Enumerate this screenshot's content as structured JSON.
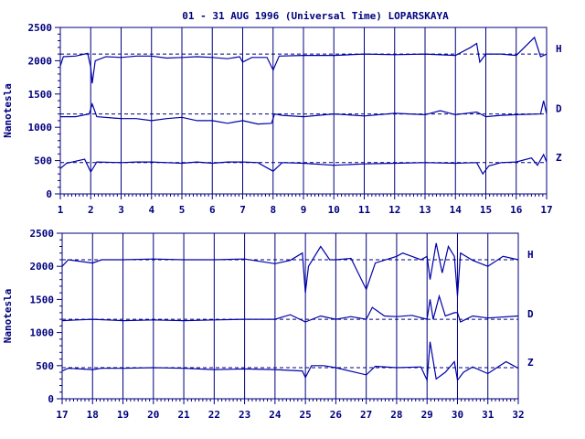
{
  "colors": {
    "ink": "#00007f",
    "trace": "#0000aa",
    "background": "#ffffff"
  },
  "title": "01 - 31 AUG 1996 (Universal Time) LOPARSKAYA",
  "chart_data": [
    {
      "type": "line",
      "ylabel": "Nanotesla",
      "ylim": [
        0,
        2500
      ],
      "yticks": [
        "0",
        "500",
        "1000",
        "1500",
        "2000",
        "2500"
      ],
      "xlim": [
        1,
        17
      ],
      "xticks": [
        "1",
        "2",
        "3",
        "4",
        "5",
        "6",
        "7",
        "8",
        "9",
        "10",
        "11",
        "12",
        "13",
        "14",
        "15",
        "16",
        "17"
      ],
      "baselines": [
        2100,
        1200,
        470
      ],
      "series": [
        {
          "name": "H",
          "points": [
            [
              1,
              1920
            ],
            [
              1.1,
              2060
            ],
            [
              1.5,
              2070
            ],
            [
              1.9,
              2110
            ],
            [
              2,
              1900
            ],
            [
              2.05,
              1660
            ],
            [
              2.15,
              2000
            ],
            [
              2.5,
              2060
            ],
            [
              3,
              2050
            ],
            [
              3.5,
              2070
            ],
            [
              4,
              2070
            ],
            [
              4.5,
              2040
            ],
            [
              5,
              2050
            ],
            [
              5.5,
              2060
            ],
            [
              6,
              2050
            ],
            [
              6.5,
              2030
            ],
            [
              6.9,
              2060
            ],
            [
              7,
              1980
            ],
            [
              7.3,
              2050
            ],
            [
              7.8,
              2050
            ],
            [
              8,
              1860
            ],
            [
              8.2,
              2070
            ],
            [
              9,
              2080
            ],
            [
              10,
              2080
            ],
            [
              11,
              2100
            ],
            [
              12,
              2090
            ],
            [
              13,
              2100
            ],
            [
              14,
              2080
            ],
            [
              14.5,
              2200
            ],
            [
              14.7,
              2260
            ],
            [
              14.8,
              1980
            ],
            [
              15,
              2100
            ],
            [
              15.5,
              2100
            ],
            [
              16,
              2080
            ],
            [
              16.6,
              2350
            ],
            [
              16.8,
              2060
            ],
            [
              17,
              2100
            ]
          ]
        },
        {
          "name": "D",
          "points": [
            [
              1,
              1160
            ],
            [
              1.5,
              1160
            ],
            [
              1.95,
              1200
            ],
            [
              2.05,
              1350
            ],
            [
              2.2,
              1160
            ],
            [
              3,
              1130
            ],
            [
              3.5,
              1130
            ],
            [
              4,
              1100
            ],
            [
              4.5,
              1130
            ],
            [
              5,
              1150
            ],
            [
              5.5,
              1100
            ],
            [
              6,
              1100
            ],
            [
              6.5,
              1060
            ],
            [
              7,
              1100
            ],
            [
              7.5,
              1050
            ],
            [
              7.95,
              1060
            ],
            [
              8.05,
              1200
            ],
            [
              8.3,
              1180
            ],
            [
              9,
              1160
            ],
            [
              10,
              1200
            ],
            [
              11,
              1170
            ],
            [
              12,
              1210
            ],
            [
              13,
              1190
            ],
            [
              13.5,
              1250
            ],
            [
              14,
              1190
            ],
            [
              14.7,
              1230
            ],
            [
              15,
              1160
            ],
            [
              15.5,
              1180
            ],
            [
              16,
              1190
            ],
            [
              16.8,
              1200
            ],
            [
              16.9,
              1400
            ],
            [
              17,
              1200
            ]
          ]
        },
        {
          "name": "Z",
          "points": [
            [
              1,
              380
            ],
            [
              1.2,
              460
            ],
            [
              1.8,
              520
            ],
            [
              2,
              330
            ],
            [
              2.2,
              480
            ],
            [
              3,
              470
            ],
            [
              3.5,
              480
            ],
            [
              4,
              480
            ],
            [
              4.5,
              470
            ],
            [
              5,
              460
            ],
            [
              5.5,
              480
            ],
            [
              6,
              460
            ],
            [
              6.5,
              480
            ],
            [
              7,
              480
            ],
            [
              7.5,
              470
            ],
            [
              8,
              340
            ],
            [
              8.3,
              470
            ],
            [
              9,
              460
            ],
            [
              10,
              430
            ],
            [
              11,
              450
            ],
            [
              12,
              460
            ],
            [
              13,
              470
            ],
            [
              14,
              460
            ],
            [
              14.7,
              470
            ],
            [
              14.9,
              300
            ],
            [
              15.1,
              420
            ],
            [
              15.5,
              470
            ],
            [
              16,
              480
            ],
            [
              16.5,
              540
            ],
            [
              16.7,
              430
            ],
            [
              16.9,
              590
            ],
            [
              17,
              480
            ]
          ]
        }
      ]
    },
    {
      "type": "line",
      "ylabel": "Nanotesla",
      "ylim": [
        0,
        2500
      ],
      "yticks": [
        "0",
        "500",
        "1000",
        "1500",
        "2000",
        "2500"
      ],
      "xlim": [
        17,
        32
      ],
      "xticks": [
        "17",
        "18",
        "19",
        "20",
        "21",
        "22",
        "23",
        "24",
        "25",
        "26",
        "27",
        "28",
        "29",
        "30",
        "31",
        "32"
      ],
      "baselines": [
        2100,
        1200,
        470
      ],
      "series": [
        {
          "name": "H",
          "points": [
            [
              17,
              2000
            ],
            [
              17.2,
              2100
            ],
            [
              18,
              2050
            ],
            [
              18.3,
              2100
            ],
            [
              19,
              2100
            ],
            [
              20,
              2110
            ],
            [
              21,
              2100
            ],
            [
              22,
              2100
            ],
            [
              23,
              2110
            ],
            [
              24,
              2040
            ],
            [
              24.5,
              2090
            ],
            [
              24.9,
              2200
            ],
            [
              25,
              1600
            ],
            [
              25.1,
              2000
            ],
            [
              25.5,
              2300
            ],
            [
              25.8,
              2100
            ],
            [
              26,
              2100
            ],
            [
              26.5,
              2120
            ],
            [
              27,
              1650
            ],
            [
              27.3,
              2050
            ],
            [
              28,
              2150
            ],
            [
              28.2,
              2200
            ],
            [
              28.8,
              2100
            ],
            [
              29,
              2150
            ],
            [
              29.1,
              1800
            ],
            [
              29.3,
              2350
            ],
            [
              29.5,
              1900
            ],
            [
              29.7,
              2300
            ],
            [
              29.9,
              2150
            ],
            [
              30,
              1550
            ],
            [
              30.1,
              2200
            ],
            [
              30.5,
              2090
            ],
            [
              31,
              2000
            ],
            [
              31.5,
              2150
            ],
            [
              32,
              2100
            ]
          ]
        },
        {
          "name": "D",
          "points": [
            [
              17,
              1180
            ],
            [
              17.5,
              1190
            ],
            [
              18,
              1200
            ],
            [
              19,
              1180
            ],
            [
              20,
              1190
            ],
            [
              21,
              1180
            ],
            [
              22,
              1190
            ],
            [
              23,
              1200
            ],
            [
              24,
              1200
            ],
            [
              24.5,
              1270
            ],
            [
              25,
              1160
            ],
            [
              25.5,
              1250
            ],
            [
              26,
              1200
            ],
            [
              26.5,
              1240
            ],
            [
              27,
              1200
            ],
            [
              27.2,
              1380
            ],
            [
              27.6,
              1250
            ],
            [
              28,
              1240
            ],
            [
              28.5,
              1260
            ],
            [
              29,
              1200
            ],
            [
              29.1,
              1500
            ],
            [
              29.2,
              1200
            ],
            [
              29.4,
              1550
            ],
            [
              29.6,
              1250
            ],
            [
              29.9,
              1300
            ],
            [
              30,
              1300
            ],
            [
              30.1,
              1160
            ],
            [
              30.5,
              1250
            ],
            [
              31,
              1220
            ],
            [
              32,
              1250
            ]
          ]
        },
        {
          "name": "Z",
          "points": [
            [
              17,
              420
            ],
            [
              17.2,
              460
            ],
            [
              18,
              440
            ],
            [
              18.3,
              460
            ],
            [
              19,
              460
            ],
            [
              20,
              470
            ],
            [
              21,
              460
            ],
            [
              22,
              440
            ],
            [
              23,
              450
            ],
            [
              24,
              440
            ],
            [
              24.9,
              420
            ],
            [
              25,
              320
            ],
            [
              25.2,
              500
            ],
            [
              25.6,
              500
            ],
            [
              26,
              470
            ],
            [
              27,
              360
            ],
            [
              27.3,
              490
            ],
            [
              28,
              470
            ],
            [
              28.8,
              480
            ],
            [
              29,
              280
            ],
            [
              29.1,
              860
            ],
            [
              29.3,
              300
            ],
            [
              29.6,
              400
            ],
            [
              29.9,
              560
            ],
            [
              30,
              280
            ],
            [
              30.2,
              400
            ],
            [
              30.5,
              480
            ],
            [
              31,
              380
            ],
            [
              31.4,
              500
            ],
            [
              31.6,
              560
            ],
            [
              32,
              460
            ]
          ]
        }
      ]
    }
  ]
}
